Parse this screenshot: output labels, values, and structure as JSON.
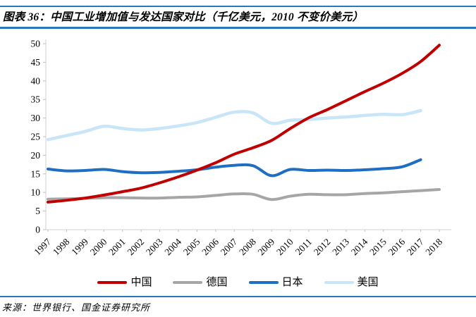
{
  "header": {
    "title": "图表 36：中国工业增加值与发达国家对比（千亿美元，2010 不变价美元）"
  },
  "footer": {
    "source": "来源：世界银行、国金证券研究所"
  },
  "theme": {
    "accent_blue": "#2878BE",
    "axis_line_color": "#D9D9D9",
    "tick_color": "#BFBFBF",
    "text_color": "#000000",
    "background": "#FFFFFF"
  },
  "chart_data": {
    "type": "line",
    "title": "图表 36：中国工业增加值与发达国家对比（千亿美元，2010 不变价美元）",
    "xlabel": "",
    "ylabel": "",
    "unit": "千亿美元，2010不变价美元",
    "categories": [
      "1997",
      "1998",
      "1999",
      "2000",
      "2001",
      "2002",
      "2003",
      "2004",
      "2005",
      "2006",
      "2007",
      "2008",
      "2009",
      "2010",
      "2011",
      "2012",
      "2013",
      "2014",
      "2015",
      "2016",
      "2017",
      "2018"
    ],
    "ylim": [
      0,
      50
    ],
    "ytick_step": 5,
    "grid": false,
    "legend_position": "bottom",
    "series": [
      {
        "name": "中国",
        "color": "#C00000",
        "stroke_width": 4,
        "values": [
          7.4,
          7.9,
          8.5,
          9.3,
          10.2,
          11.2,
          12.6,
          14.2,
          16.0,
          18.0,
          20.3,
          22.0,
          24.0,
          27.2,
          30.1,
          32.3,
          34.7,
          37.1,
          39.4,
          42.0,
          45.2,
          49.6
        ]
      },
      {
        "name": "德国",
        "color": "#A6A6A6",
        "stroke_width": 4,
        "values": [
          8.2,
          8.3,
          8.4,
          8.6,
          8.6,
          8.5,
          8.5,
          8.7,
          8.8,
          9.2,
          9.6,
          9.5,
          8.1,
          9.0,
          9.5,
          9.4,
          9.4,
          9.7,
          9.9,
          10.2,
          10.5,
          10.8
        ]
      },
      {
        "name": "日本",
        "color": "#1E6FC4",
        "stroke_width": 4,
        "values": [
          16.3,
          15.8,
          15.9,
          16.2,
          15.6,
          15.3,
          15.4,
          15.7,
          16.1,
          16.8,
          17.3,
          17.2,
          14.5,
          16.2,
          15.9,
          16.0,
          15.9,
          16.1,
          16.4,
          16.9,
          18.8
        ]
      },
      {
        "name": "美国",
        "color": "#C8E6F8",
        "stroke_width": 4.5,
        "values": [
          24.2,
          25.3,
          26.4,
          27.8,
          27.2,
          26.8,
          27.2,
          27.9,
          28.8,
          30.2,
          31.6,
          31.4,
          28.6,
          29.4,
          29.6,
          30.0,
          30.3,
          30.7,
          31.0,
          30.9,
          32.0
        ]
      }
    ]
  }
}
